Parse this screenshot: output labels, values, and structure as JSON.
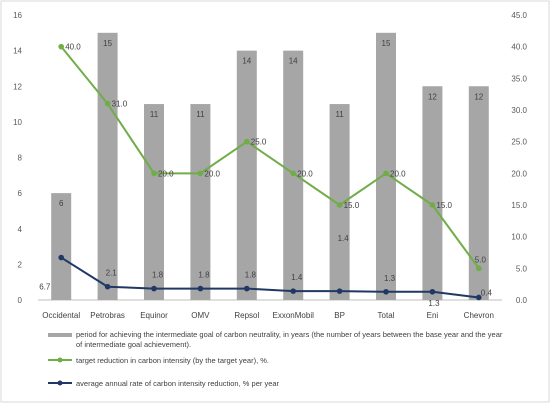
{
  "chart_data": {
    "type": "bar",
    "categories": [
      "Occidental",
      "Petrobras",
      "Equinor",
      "OMV",
      "Repsol",
      "ExxonMobil",
      "BP",
      "Total",
      "Eni",
      "Chevron"
    ],
    "series": [
      {
        "name": "period for achieving the intermediate goal of carbon neutrality, in years (the number of years between the base year and the year of intermediate goal achievement).",
        "type": "bar",
        "axis": "left",
        "color": "#a6a6a6",
        "values": [
          6,
          15,
          11,
          11,
          14,
          14,
          11,
          15,
          12,
          12
        ],
        "labels": [
          "6",
          "15",
          "11",
          "11",
          "14",
          "14",
          "11",
          "15",
          "12",
          "12"
        ]
      },
      {
        "name": "target reduction in carbon intensity (by the target year), %.",
        "type": "line",
        "axis": "right",
        "color": "#70ad47",
        "values": [
          40.0,
          31.0,
          20.0,
          20.0,
          25.0,
          20.0,
          15.0,
          20.0,
          15.0,
          5.0
        ],
        "labels": [
          "40.0",
          "31.0",
          "20.0",
          "20.0",
          "25.0",
          "20.0",
          "15.0",
          "20.0",
          "15.0",
          "5.0"
        ]
      },
      {
        "name": "average annual rate of carbon intensity reduction, % per year",
        "type": "line",
        "axis": "right",
        "color": "#203864",
        "values": [
          6.7,
          2.1,
          1.8,
          1.8,
          1.8,
          1.4,
          1.4,
          1.3,
          1.3,
          0.4
        ],
        "labels": [
          "6.7",
          "2.1",
          "1.8",
          "1.8",
          "1.8",
          "1.4",
          "1.4",
          "1.3",
          "1.3",
          "0.4"
        ]
      }
    ],
    "y_left": {
      "min": 0,
      "max": 16,
      "ticks": [
        "0",
        "2",
        "4",
        "6",
        "8",
        "10",
        "12",
        "14",
        "16"
      ]
    },
    "y_right": {
      "min": 0,
      "max": 45,
      "ticks": [
        "0.0",
        "5.0",
        "10.0",
        "15.0",
        "20.0",
        "25.0",
        "30.0",
        "35.0",
        "40.0",
        "45.0"
      ]
    },
    "title": "",
    "xlabel": "",
    "ylabel": "",
    "grid": false,
    "legend_position": "bottom"
  }
}
